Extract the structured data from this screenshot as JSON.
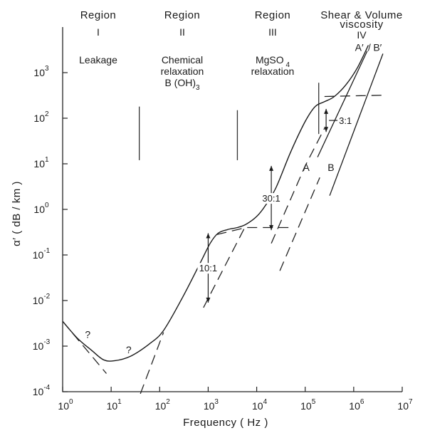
{
  "chart_data": {
    "type": "line",
    "xlabel": "Frequency  ( Hz )",
    "ylabel": "α′ ( dB / km )",
    "x_scale": "log",
    "y_scale": "log",
    "xlim": [
      1,
      10000000
    ],
    "ylim": [
      0.0001,
      10000
    ],
    "x_ticks": [
      {
        "base": "10",
        "exp": "0"
      },
      {
        "base": "10",
        "exp": "1"
      },
      {
        "base": "10",
        "exp": "2"
      },
      {
        "base": "10",
        "exp": "3"
      },
      {
        "base": "10",
        "exp": "4"
      },
      {
        "base": "10",
        "exp": "5"
      },
      {
        "base": "10",
        "exp": "6"
      },
      {
        "base": "10",
        "exp": "7"
      }
    ],
    "y_ticks": [
      {
        "base": "10",
        "exp": "-4"
      },
      {
        "base": "10",
        "exp": "-3"
      },
      {
        "base": "10",
        "exp": "-2"
      },
      {
        "base": "10",
        "exp": "-1"
      },
      {
        "base": "10",
        "exp": "0"
      },
      {
        "base": "10",
        "exp": "1"
      },
      {
        "base": "10",
        "exp": "2"
      },
      {
        "base": "10",
        "exp": "3"
      }
    ],
    "regions": [
      {
        "title": "Region",
        "numeral": "I",
        "desc": [
          "Leakage"
        ]
      },
      {
        "title": "Region",
        "numeral": "II",
        "desc": [
          "Chemical",
          "relaxation",
          "B (OH)"
        ],
        "desc_sub": "3"
      },
      {
        "title": "Region",
        "numeral": "III",
        "desc": [
          "MgSO",
          "relaxation"
        ],
        "desc_sub": "4"
      },
      {
        "title": "Shear & Volume",
        "title2": "viscosity",
        "numeral": "IV",
        "desc": []
      }
    ],
    "region_dividers": [
      {
        "x": 38,
        "y_top": 180,
        "y_bottom": 12
      },
      {
        "x": 4000,
        "y_top": 150,
        "y_bottom": 12
      },
      {
        "x": 190000,
        "y_top": 600,
        "y_bottom": 45
      }
    ],
    "series": [
      {
        "name": "",
        "style": "solid",
        "points": [
          [
            1,
            0.0035
          ],
          [
            2,
            0.0015
          ],
          [
            4,
            0.0008
          ],
          [
            7,
            0.0005
          ],
          [
            12,
            0.00048
          ],
          [
            25,
            0.0006
          ],
          [
            60,
            0.0011
          ],
          [
            120,
            0.0022
          ],
          [
            300,
            0.012
          ],
          [
            700,
            0.07
          ],
          [
            1100,
            0.18
          ],
          [
            1600,
            0.3
          ],
          [
            2500,
            0.36
          ],
          [
            4000,
            0.4
          ],
          [
            6000,
            0.47
          ],
          [
            10000,
            0.7
          ],
          [
            15000,
            1.2
          ],
          [
            25000,
            3
          ],
          [
            50000,
            18
          ],
          [
            100000,
            85
          ],
          [
            160000,
            180
          ],
          [
            250000,
            230
          ],
          [
            400000,
            300
          ],
          [
            700000,
            550
          ],
          [
            1200000,
            1300
          ],
          [
            2000000,
            4000
          ]
        ]
      },
      {
        "name": "",
        "style": "dashed",
        "points": [
          [
            1,
            0.0035
          ],
          [
            8,
            0.00025
          ]
        ]
      },
      {
        "name": "",
        "style": "dashed",
        "points": [
          [
            40,
            9e-05
          ],
          [
            120,
            0.002
          ]
        ]
      },
      {
        "name": "",
        "style": "dashed",
        "points": [
          [
            800,
            0.007
          ],
          [
            6000,
            0.45
          ]
        ]
      },
      {
        "name": "",
        "style": "dashed",
        "points": [
          [
            1500,
            0.28
          ],
          [
            6000,
            0.4
          ],
          [
            50000,
            0.4
          ]
        ]
      },
      {
        "name": "",
        "style": "dashed",
        "points": [
          [
            20000,
            0.18
          ],
          [
            100000,
            9
          ],
          [
            250000,
            60
          ]
        ]
      },
      {
        "name": "",
        "style": "dashed",
        "points": [
          [
            30000,
            0.045
          ],
          [
            200000,
            5
          ]
        ]
      },
      {
        "name": "",
        "style": "dashed",
        "points": [
          [
            250000,
            300
          ],
          [
            4000000,
            320
          ]
        ]
      },
      {
        "name": "A′",
        "style": "solid",
        "points": [
          [
            180000,
            14
          ],
          [
            1900000,
            3000
          ]
        ]
      },
      {
        "name": "B′",
        "style": "solid",
        "points": [
          [
            320000,
            2
          ],
          [
            4000000,
            2600
          ]
        ]
      }
    ],
    "annotations": [
      {
        "text": "?",
        "x": 3.3,
        "y": 0.0015
      },
      {
        "text": "?",
        "x": 23,
        "y": 0.0007
      },
      {
        "text": "A",
        "x": 105000,
        "y": 7
      },
      {
        "text": "B",
        "x": 340000,
        "y": 7
      },
      {
        "text": "A′",
        "x": 1300000,
        "y": 3000
      },
      {
        "text": "/",
        "x": 2100000,
        "y": 3000
      },
      {
        "text": "B′",
        "x": 3100000,
        "y": 3000
      }
    ],
    "ratio_markers": [
      {
        "label": "10:1",
        "x": 1000,
        "y_top": 0.3,
        "y_bottom": 0.009
      },
      {
        "label": "30:1",
        "x": 20000,
        "y_top": 9,
        "y_bottom": 0.35
      },
      {
        "label": "3:1",
        "x": 270000,
        "y_top": 160,
        "y_bottom": 50
      }
    ]
  }
}
